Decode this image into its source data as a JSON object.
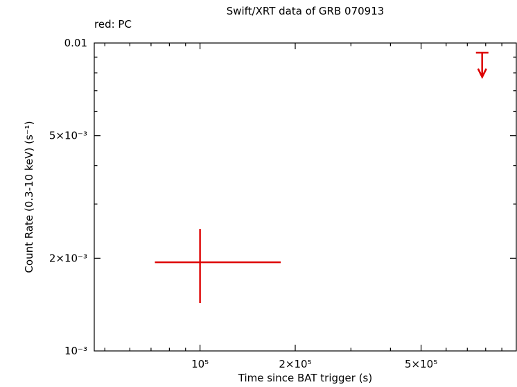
{
  "chart_data": {
    "type": "scatter",
    "title": "Swift/XRT data of GRB 070913",
    "legend": "red: PC",
    "xlabel": "Time since BAT trigger (s)",
    "ylabel": "Count Rate (0.3-10 keV) (s⁻¹)",
    "xscale": "log",
    "yscale": "log",
    "xlim": [
      46300,
      1000000
    ],
    "ylim": [
      0.001,
      0.01
    ],
    "grid": false,
    "x_ticks": [
      {
        "v": 100000,
        "label": "10⁵"
      },
      {
        "v": 200000,
        "label": "2×10⁵"
      },
      {
        "v": 500000,
        "label": "5×10⁵"
      }
    ],
    "y_ticks": [
      {
        "v": 0.001,
        "label": "10⁻³"
      },
      {
        "v": 0.002,
        "label": "2×10⁻³"
      },
      {
        "v": 0.005,
        "label": "5×10⁻³"
      },
      {
        "v": 0.01,
        "label": "0.01"
      }
    ],
    "colors": {
      "axis": "#000000",
      "pc_mode": "#dd0000"
    },
    "series": [
      {
        "name": "PC",
        "color": "#dd0000",
        "points": [
          {
            "x": 100000,
            "x_lo": 72000,
            "x_hi": 180000,
            "y": 0.00194,
            "y_lo": 0.00143,
            "y_hi": 0.00249
          }
        ],
        "upper_limits": [
          {
            "x": 780000,
            "y": 0.0093
          }
        ]
      }
    ]
  }
}
